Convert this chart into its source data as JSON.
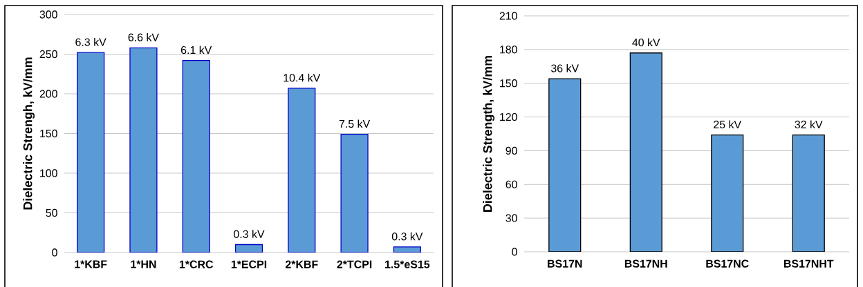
{
  "chart_data": [
    {
      "type": "bar",
      "ylabel": "Dielectric Strengh, kV/mm",
      "categories": [
        "1*KBF",
        "1*HN",
        "1*CRC",
        "1*ECPI",
        "2*KBF",
        "2*TCPI",
        "1.5*eS15"
      ],
      "values": [
        252,
        258,
        242,
        10,
        207,
        149,
        7
      ],
      "color": "#5b9bd5",
      "ylim": [
        0,
        300
      ],
      "yticks": [
        0,
        50,
        100,
        150,
        200,
        250,
        300
      ],
      "grid": "y",
      "annotations": [
        {
          "text": "6.3 kV",
          "x": "1*KBF",
          "y": 252
        },
        {
          "text": "6.6 kV",
          "x": "1*HN",
          "y": 258
        },
        {
          "text": "6.1 kV",
          "x": "1*CRC",
          "y": 242
        },
        {
          "text": "0.3 kV",
          "x": "1*ECPI",
          "y": 10
        },
        {
          "text": "10.4 kV",
          "x": "2*KBF",
          "y": 207
        },
        {
          "text": "7.5 kV",
          "x": "2*TCPI",
          "y": 149
        },
        {
          "text": "0.3 kV",
          "x": "1.5*eS15",
          "y": 7
        }
      ]
    },
    {
      "type": "bar",
      "ylabel": "Dielectric Strength, kV/mm",
      "categories": [
        "BS17N",
        "BS17NH",
        "BS17NC",
        "BS17NHT"
      ],
      "values": [
        154,
        177,
        104,
        104
      ],
      "color": "#5b9bd5",
      "ylim": [
        0,
        210
      ],
      "yticks": [
        0,
        30,
        60,
        90,
        120,
        150,
        180,
        210
      ],
      "grid": "y",
      "annotations": [
        {
          "text": "36 kV",
          "x": "BS17N",
          "y": 154
        },
        {
          "text": "40 kV",
          "x": "BS17NH",
          "y": 177
        },
        {
          "text": "25 kV",
          "x": "BS17NC",
          "y": 104
        },
        {
          "text": "32 kV",
          "x": "BS17NHT",
          "y": 104
        }
      ]
    }
  ]
}
